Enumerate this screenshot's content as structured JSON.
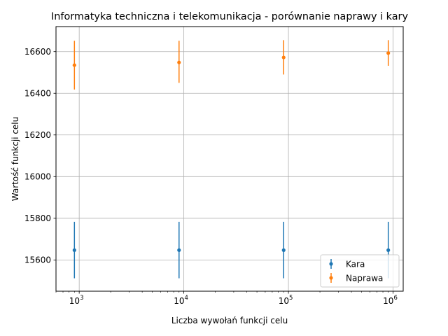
{
  "chart_data": {
    "type": "scatter",
    "title": "Informatyka techniczna i telekomunikacja - porównanie naprawy i kary",
    "xlabel": "Liczba wywołań funkcji celu",
    "ylabel": "Wartość funkcji celu",
    "x_scale": "log",
    "xlim": [
      600,
      1250000
    ],
    "ylim": [
      15450,
      16720
    ],
    "x_ticks": [
      {
        "value": 1000,
        "base": "10",
        "exp": "3"
      },
      {
        "value": 10000,
        "base": "10",
        "exp": "4"
      },
      {
        "value": 100000,
        "base": "10",
        "exp": "5"
      },
      {
        "value": 1000000,
        "base": "10",
        "exp": "6"
      }
    ],
    "y_ticks": [
      {
        "value": 15600,
        "label": "15600"
      },
      {
        "value": 15800,
        "label": "15800"
      },
      {
        "value": 16000,
        "label": "16000"
      },
      {
        "value": 16200,
        "label": "16200"
      },
      {
        "value": 16400,
        "label": "16400"
      },
      {
        "value": 16600,
        "label": "16600"
      }
    ],
    "grid": true,
    "legend_position": "lower-right",
    "series": [
      {
        "name": "Kara",
        "color": "#1f77b4",
        "x": [
          900,
          9000,
          90000,
          900000
        ],
        "y": [
          15647,
          15647,
          15647,
          15647
        ],
        "yerr_low": [
          15512,
          15512,
          15512,
          15512
        ],
        "yerr_high": [
          15783,
          15783,
          15783,
          15783
        ]
      },
      {
        "name": "Naprawa",
        "color": "#ff7f0e",
        "x": [
          900,
          9000,
          90000,
          900000
        ],
        "y": [
          16535,
          16548,
          16572,
          16593
        ],
        "yerr_low": [
          16418,
          16450,
          16490,
          16532
        ],
        "yerr_high": [
          16652,
          16652,
          16655,
          16655
        ]
      }
    ]
  }
}
